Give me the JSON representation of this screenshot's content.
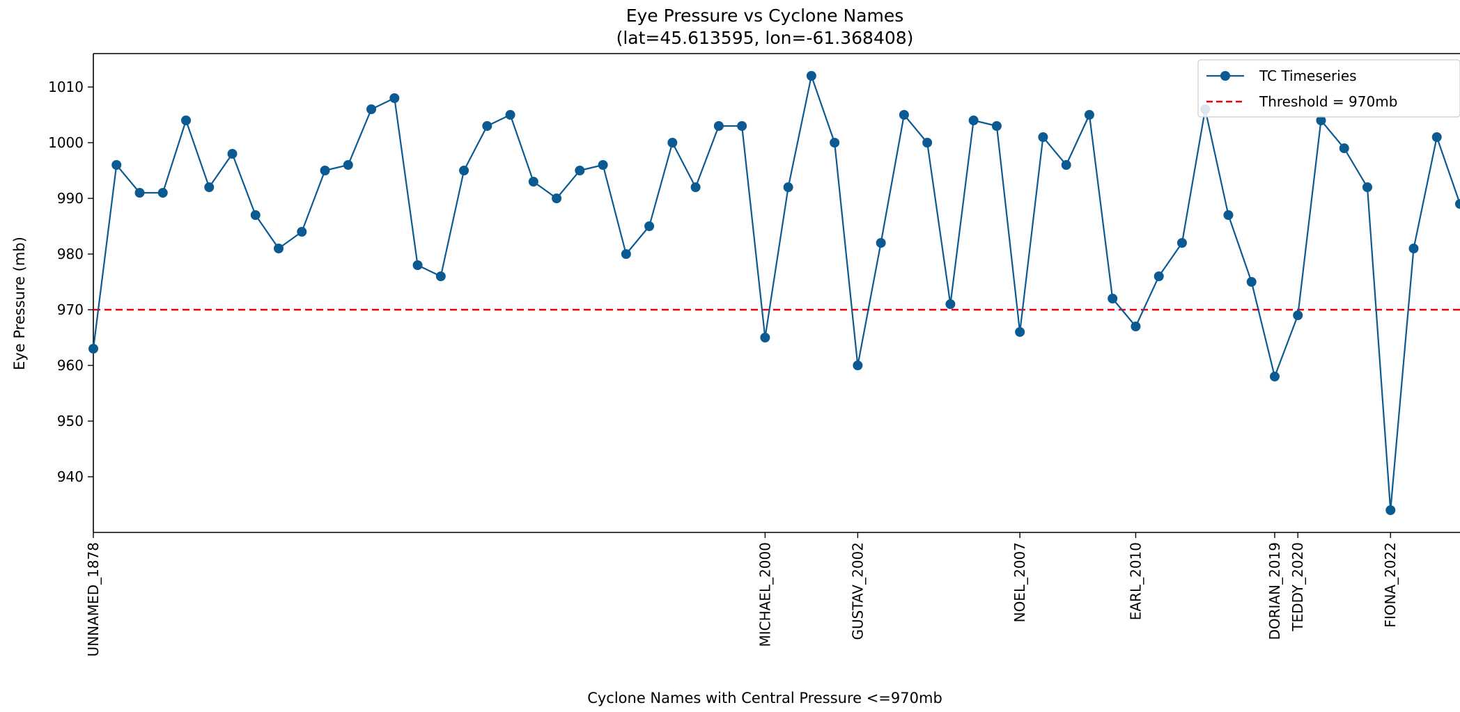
{
  "chart_data": {
    "type": "line",
    "title": "Eye Pressure vs Cyclone Names",
    "subtitle": "(lat=45.613595, lon=-61.368408)",
    "xlabel": "Cyclone Names with Central Pressure <=970mb",
    "ylabel": "Eye Pressure (mb)",
    "xlim": [
      0,
      59
    ],
    "ylim": [
      930,
      1016
    ],
    "yticks": [
      940,
      950,
      960,
      970,
      980,
      990,
      1000,
      1010
    ],
    "grid": false,
    "legend_position": "top-right",
    "x_tick_labels": [
      {
        "index": 0,
        "label": "UNNAMED_1878"
      },
      {
        "index": 29,
        "label": "MICHAEL_2000"
      },
      {
        "index": 33,
        "label": "GUSTAV_2002"
      },
      {
        "index": 40,
        "label": "NOEL_2007"
      },
      {
        "index": 45,
        "label": "EARL_2010"
      },
      {
        "index": 51,
        "label": "DORIAN_2019"
      },
      {
        "index": 52,
        "label": "TEDDY_2020"
      },
      {
        "index": 56,
        "label": "FIONA_2022"
      }
    ],
    "series": [
      {
        "name": "TC Timeseries",
        "color": "#0b5a92",
        "marker": "circle",
        "values": [
          963,
          996,
          991,
          991,
          1004,
          992,
          998,
          987,
          981,
          984,
          995,
          996,
          1006,
          1008,
          978,
          976,
          995,
          1003,
          1005,
          993,
          990,
          995,
          996,
          980,
          985,
          1000,
          992,
          1003,
          1003,
          965,
          992,
          1012,
          1000,
          960,
          982,
          1005,
          1000,
          971,
          1004,
          1003,
          966,
          1001,
          996,
          1005,
          972,
          967,
          976,
          982,
          1006,
          987,
          975,
          958,
          969,
          1004,
          999,
          992,
          934,
          981,
          1001,
          989
        ]
      }
    ],
    "threshold": {
      "name": "Threshold = 970mb",
      "value": 970,
      "color": "#e8000b",
      "style": "dashed"
    }
  }
}
